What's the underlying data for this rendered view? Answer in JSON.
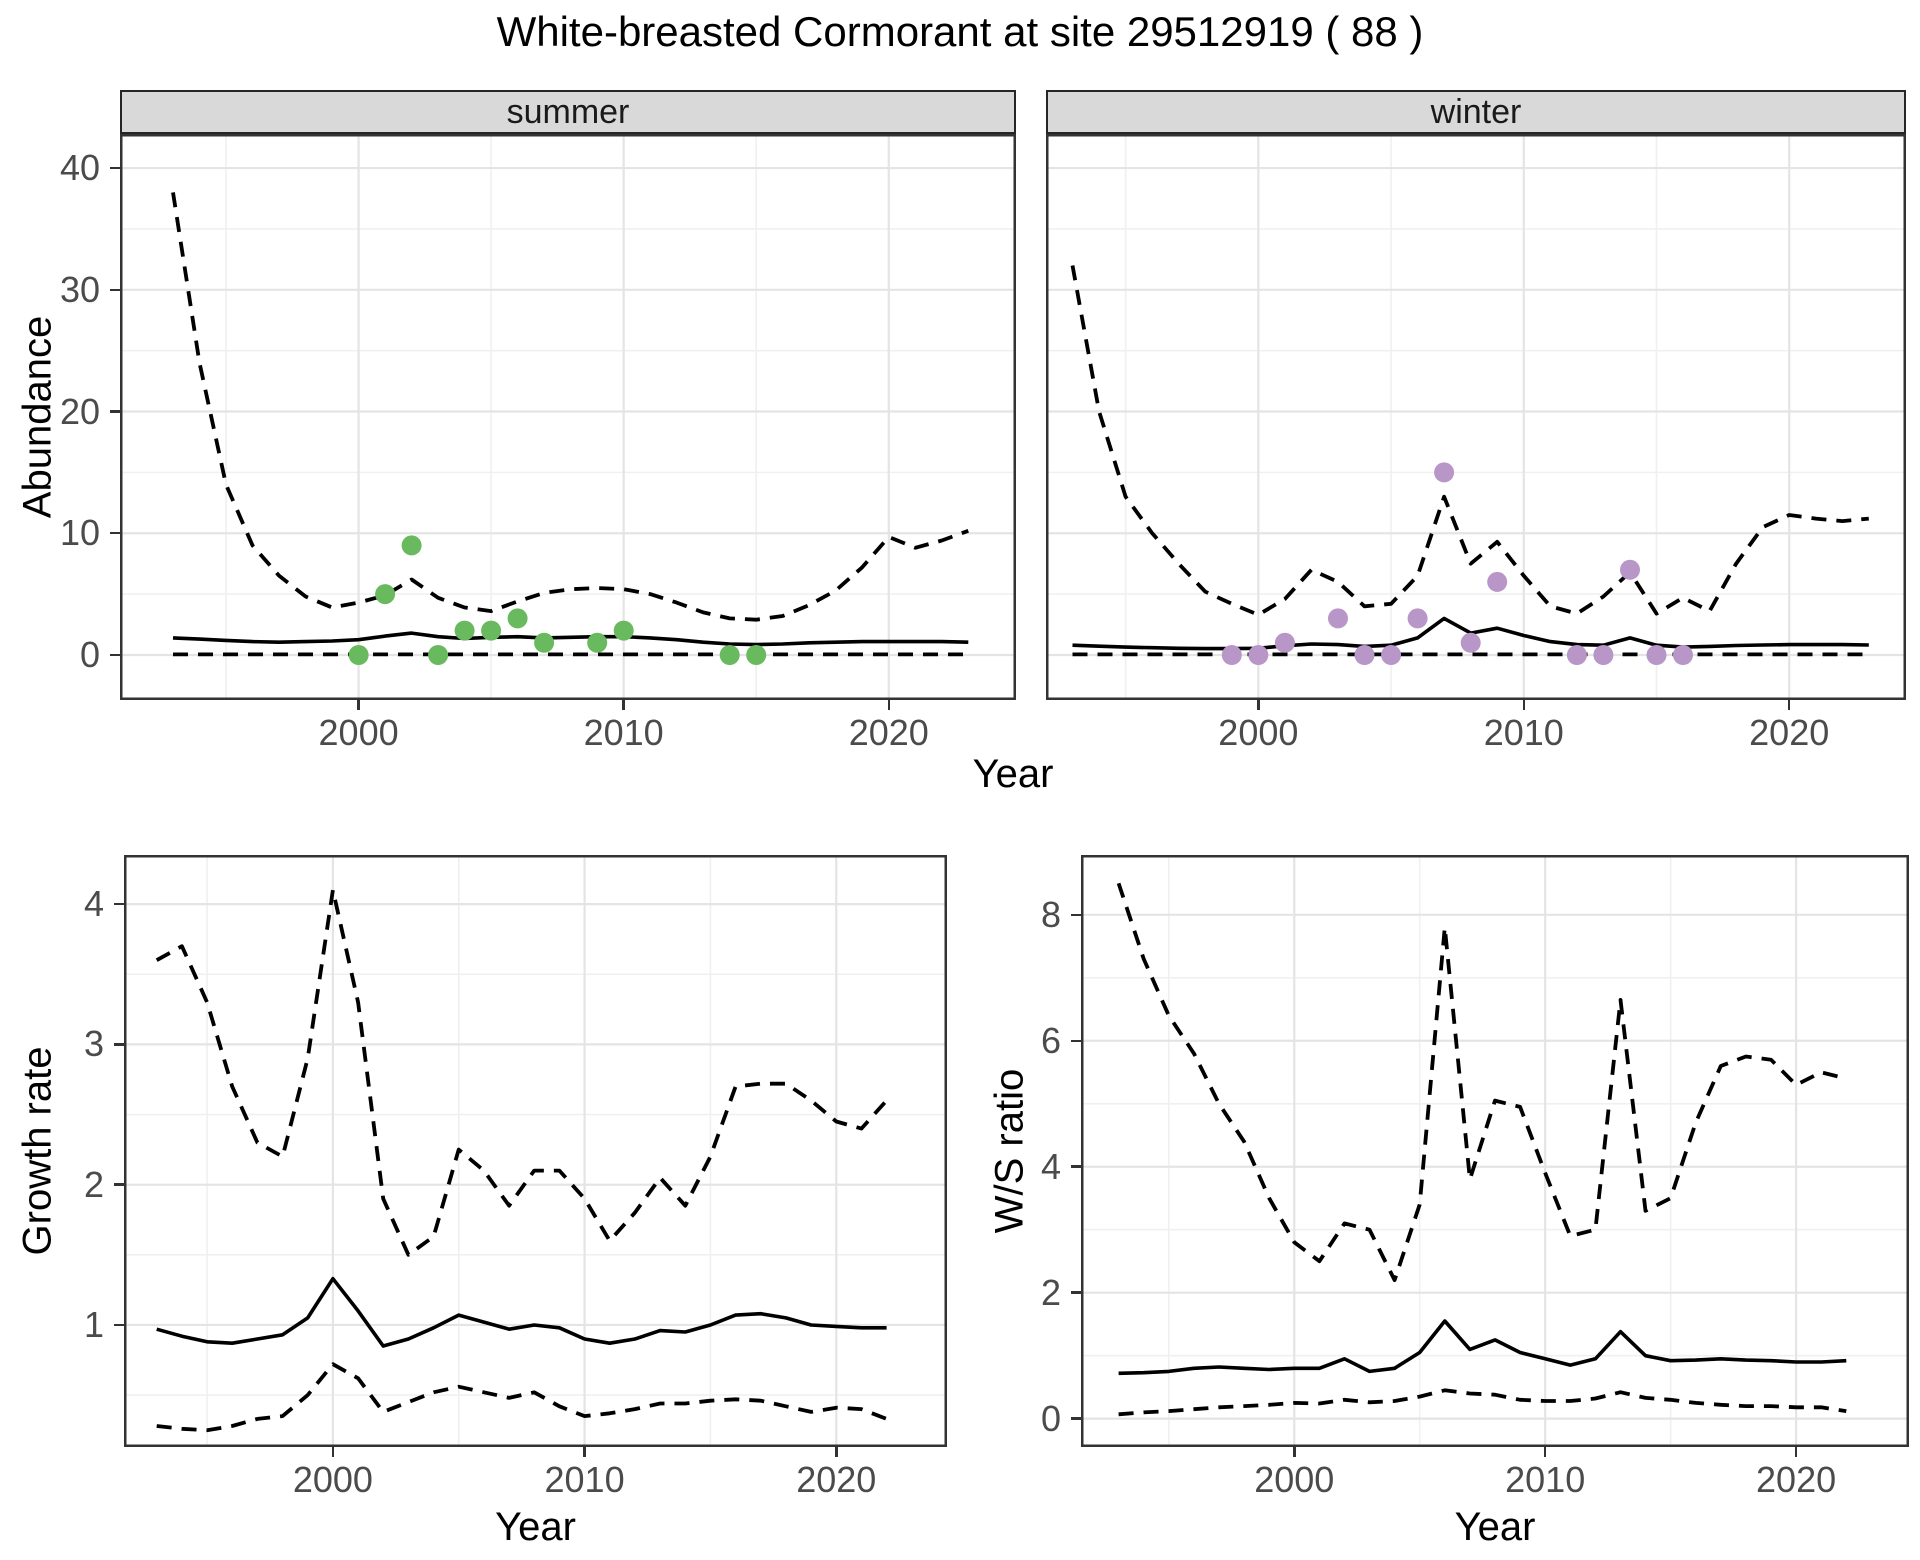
{
  "title": "White-breasted Cormorant at site 29512919 ( 88 )",
  "axes": {
    "abundance_label": "Abundance",
    "growth_label": "Growth rate",
    "ws_label": "W/S ratio",
    "year_label": "Year"
  },
  "colors": {
    "summer_point": "#69ba5f",
    "winter_point": "#b996c8",
    "line": "#000000",
    "grid_major": "#e4e4e4",
    "grid_minor": "#f0f0f0",
    "panel_border": "#333333",
    "strip_bg": "#d9d9d9",
    "axis_text": "#4b4b4b"
  },
  "chart_data": [
    {
      "id": "abundance-summer",
      "type": "line",
      "facet_label": "summer",
      "ylabel": "Abundance",
      "xlabel": "Year",
      "xlim": [
        1991.0,
        2024.8
      ],
      "ylim": [
        -3.7,
        42.8
      ],
      "x_ticks": [
        2000,
        2010,
        2020
      ],
      "x_minor_ticks": [
        1995,
        2005,
        2015
      ],
      "y_ticks": [
        0,
        10,
        20,
        30,
        40
      ],
      "y_minor_ticks": [
        5,
        15,
        25,
        35
      ],
      "series": [
        {
          "name": "upper-ci",
          "style": "dashed",
          "x0": 1993,
          "y": [
            38,
            24,
            14,
            9,
            6.5,
            4.8,
            3.9,
            4.3,
            4.9,
            6.2,
            4.7,
            3.9,
            3.6,
            4.4,
            5.1,
            5.4,
            5.5,
            5.4,
            5.0,
            4.3,
            3.5,
            3.0,
            2.9,
            3.2,
            4.1,
            5.3,
            7.2,
            9.7,
            8.8,
            9.4,
            10.2
          ]
        },
        {
          "name": "fit",
          "style": "solid",
          "x0": 1993,
          "y": [
            1.4,
            1.3,
            1.2,
            1.1,
            1.05,
            1.1,
            1.15,
            1.25,
            1.55,
            1.8,
            1.5,
            1.35,
            1.45,
            1.5,
            1.4,
            1.45,
            1.5,
            1.5,
            1.4,
            1.25,
            1.05,
            0.9,
            0.85,
            0.9,
            1.0,
            1.05,
            1.1,
            1.1,
            1.1,
            1.1,
            1.05
          ]
        },
        {
          "name": "lower-ci",
          "style": "dashed",
          "x0": 1993,
          "y": [
            0.05,
            0.05,
            0.05,
            0.05,
            0.05,
            0.05,
            0.05,
            0.05,
            0.05,
            0.05,
            0.05,
            0.05,
            0.05,
            0.05,
            0.05,
            0.05,
            0.05,
            0.05,
            0.05,
            0.05,
            0.05,
            0.05,
            0.05,
            0.05,
            0.05,
            0.05,
            0.05,
            0.05,
            0.05,
            0.05,
            0.05
          ]
        }
      ],
      "points": {
        "name": "summer-observations",
        "color": "#69ba5f",
        "x": [
          2000,
          2001,
          2002,
          2003,
          2004,
          2005,
          2006,
          2007,
          2009,
          2010,
          2014,
          2015
        ],
        "y": [
          0,
          5,
          9,
          0,
          2,
          2,
          3,
          1,
          1,
          2,
          0,
          0
        ]
      }
    },
    {
      "id": "abundance-winter",
      "type": "line",
      "facet_label": "winter",
      "ylabel": "Abundance",
      "xlabel": "Year",
      "xlim": [
        1992.0,
        2024.4
      ],
      "ylim": [
        -3.7,
        42.8
      ],
      "x_ticks": [
        2000,
        2010,
        2020
      ],
      "x_minor_ticks": [
        1995,
        2005,
        2015
      ],
      "y_ticks": [
        0,
        10,
        20,
        30,
        40
      ],
      "y_minor_ticks": [
        5,
        15,
        25,
        35
      ],
      "series": [
        {
          "name": "upper-ci",
          "style": "dashed",
          "x0": 1993,
          "y": [
            32,
            20,
            13,
            10,
            7.5,
            5.2,
            4.2,
            3.3,
            4.6,
            7.0,
            6.0,
            4.0,
            4.2,
            6.5,
            13.0,
            7.5,
            9.3,
            6.5,
            4.0,
            3.4,
            4.8,
            6.8,
            3.4,
            4.7,
            3.6,
            7.5,
            10.5,
            11.5,
            11.2,
            11.0,
            11.2
          ]
        },
        {
          "name": "fit",
          "style": "solid",
          "x0": 1993,
          "y": [
            0.8,
            0.72,
            0.65,
            0.6,
            0.55,
            0.52,
            0.52,
            0.55,
            0.75,
            0.9,
            0.85,
            0.7,
            0.8,
            1.4,
            3.0,
            1.8,
            2.2,
            1.6,
            1.1,
            0.85,
            0.8,
            1.4,
            0.8,
            0.65,
            0.7,
            0.78,
            0.82,
            0.85,
            0.85,
            0.85,
            0.82
          ]
        },
        {
          "name": "lower-ci",
          "style": "dashed",
          "x0": 1993,
          "y": [
            0.05,
            0.05,
            0.05,
            0.05,
            0.05,
            0.05,
            0.05,
            0.05,
            0.05,
            0.05,
            0.05,
            0.05,
            0.05,
            0.05,
            0.05,
            0.05,
            0.05,
            0.05,
            0.05,
            0.05,
            0.05,
            0.05,
            0.05,
            0.05,
            0.05,
            0.05,
            0.05,
            0.05,
            0.05,
            0.05,
            0.05
          ]
        }
      ],
      "points": {
        "name": "winter-observations",
        "color": "#b996c8",
        "x": [
          1999,
          2000,
          2001,
          2003,
          2004,
          2005,
          2006,
          2007,
          2008,
          2009,
          2012,
          2013,
          2014,
          2015,
          2016
        ],
        "y": [
          0,
          0,
          1,
          3,
          0,
          0,
          3,
          15,
          1,
          6,
          0,
          0,
          7,
          0,
          0
        ]
      }
    },
    {
      "id": "growth-rate",
      "type": "line",
      "facet_label": "",
      "ylabel": "Growth rate",
      "xlabel": "Year",
      "xlim": [
        1991.7,
        2024.4
      ],
      "ylim": [
        0.13,
        4.35
      ],
      "x_ticks": [
        2000,
        2010,
        2020
      ],
      "x_minor_ticks": [
        1995,
        2005,
        2015
      ],
      "y_ticks": [
        1,
        2,
        3,
        4
      ],
      "y_minor_ticks": [
        0.5,
        1.5,
        2.5,
        3.5
      ],
      "series": [
        {
          "name": "upper-ci",
          "style": "dashed",
          "x0": 1993,
          "y": [
            3.6,
            3.7,
            3.3,
            2.7,
            2.3,
            2.2,
            2.9,
            4.1,
            3.3,
            1.9,
            1.5,
            1.63,
            2.25,
            2.1,
            1.85,
            2.1,
            2.1,
            1.9,
            1.6,
            1.8,
            2.05,
            1.85,
            2.2,
            2.7,
            2.72,
            2.72,
            2.6,
            2.45,
            2.4,
            2.6
          ]
        },
        {
          "name": "fit",
          "style": "solid",
          "x0": 1993,
          "y": [
            0.97,
            0.92,
            0.88,
            0.87,
            0.9,
            0.93,
            1.05,
            1.33,
            1.1,
            0.85,
            0.9,
            0.98,
            1.07,
            1.02,
            0.97,
            1.0,
            0.98,
            0.9,
            0.87,
            0.9,
            0.96,
            0.95,
            1.0,
            1.07,
            1.08,
            1.05,
            1.0,
            0.99,
            0.98,
            0.98
          ]
        },
        {
          "name": "lower-ci",
          "style": "dashed",
          "x0": 1993,
          "y": [
            0.28,
            0.26,
            0.25,
            0.28,
            0.33,
            0.35,
            0.5,
            0.72,
            0.62,
            0.38,
            0.45,
            0.52,
            0.56,
            0.52,
            0.48,
            0.52,
            0.42,
            0.35,
            0.37,
            0.4,
            0.44,
            0.44,
            0.46,
            0.47,
            0.46,
            0.42,
            0.38,
            0.41,
            0.4,
            0.33
          ]
        }
      ]
    },
    {
      "id": "ws-ratio",
      "type": "line",
      "facet_label": "",
      "ylabel": "W/S ratio",
      "xlabel": "Year",
      "xlim": [
        1991.5,
        2024.5
      ],
      "ylim": [
        -0.45,
        8.95
      ],
      "x_ticks": [
        2000,
        2010,
        2020
      ],
      "x_minor_ticks": [
        1995,
        2005,
        2015
      ],
      "y_ticks": [
        0,
        2,
        4,
        6,
        8
      ],
      "y_minor_ticks": [
        1,
        3,
        5,
        7
      ],
      "series": [
        {
          "name": "upper-ci",
          "style": "dashed",
          "x0": 1993,
          "y": [
            8.5,
            7.3,
            6.4,
            5.8,
            5.0,
            4.4,
            3.5,
            2.8,
            2.5,
            3.1,
            3.0,
            2.2,
            3.4,
            7.8,
            3.8,
            5.05,
            4.95,
            3.9,
            2.9,
            3.0,
            6.65,
            3.3,
            3.5,
            4.7,
            5.6,
            5.75,
            5.7,
            5.3,
            5.5,
            5.4
          ]
        },
        {
          "name": "fit",
          "style": "solid",
          "x0": 1993,
          "y": [
            0.72,
            0.73,
            0.75,
            0.8,
            0.82,
            0.8,
            0.78,
            0.8,
            0.8,
            0.95,
            0.75,
            0.8,
            1.05,
            1.55,
            1.1,
            1.25,
            1.05,
            0.95,
            0.85,
            0.95,
            1.38,
            1.0,
            0.92,
            0.93,
            0.95,
            0.93,
            0.92,
            0.9,
            0.9,
            0.92
          ]
        },
        {
          "name": "lower-ci",
          "style": "dashed",
          "x0": 1993,
          "y": [
            0.07,
            0.1,
            0.12,
            0.15,
            0.18,
            0.2,
            0.22,
            0.25,
            0.24,
            0.3,
            0.26,
            0.28,
            0.35,
            0.45,
            0.4,
            0.38,
            0.3,
            0.28,
            0.28,
            0.32,
            0.42,
            0.33,
            0.3,
            0.25,
            0.22,
            0.2,
            0.2,
            0.18,
            0.18,
            0.12
          ]
        }
      ]
    }
  ]
}
